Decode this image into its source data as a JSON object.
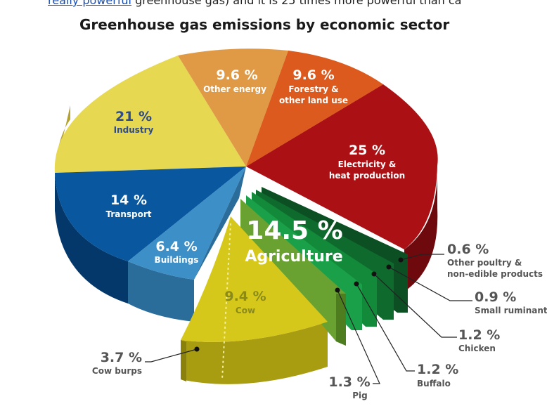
{
  "page": {
    "top_text_link": "really powerful",
    "top_text_rest": " greenhouse gas) and it is 25 times more powerful than ca"
  },
  "chart_data": {
    "type": "pie",
    "title": "Greenhouse gas emissions by economic sector",
    "unit": "%",
    "slices": [
      {
        "key": "energy",
        "label": "Other energy",
        "value": 9.6,
        "value_label": "9.6 %",
        "color": "#e09a45"
      },
      {
        "key": "forestry",
        "label_lines": [
          "Forestry &",
          "other land use"
        ],
        "value": 9.6,
        "value_label": "9.6 %",
        "color": "#dc5a1d"
      },
      {
        "key": "electricity",
        "label_lines": [
          "Electricity &",
          "heat production"
        ],
        "value": 25,
        "value_label": "25 %",
        "color": "#b01116"
      },
      {
        "key": "agriculture",
        "label": "Agriculture",
        "value": 14.5,
        "value_label": "14.5 %",
        "color": "#2e9a3a"
      },
      {
        "key": "buildings",
        "label": "Buildings",
        "value": 6.4,
        "value_label": "6.4 %",
        "color": "#3d8fc8"
      },
      {
        "key": "transport",
        "label": "Transport",
        "value": 14,
        "value_label": "14 %",
        "color": "#08579f"
      },
      {
        "key": "industry",
        "label": "Industry",
        "value": 21,
        "value_label": "21 %",
        "color": "#e7d851"
      }
    ],
    "agriculture_breakdown": [
      {
        "key": "cow",
        "label": "Cow",
        "value": 9.4,
        "value_label": "9.4 %",
        "color": "#d6c81a"
      },
      {
        "key": "cow_burps",
        "label": "Cow burps",
        "value": 3.7,
        "value_label": "3.7 %"
      },
      {
        "key": "pig",
        "label": "Pig",
        "value": 1.3,
        "value_label": "1.3 %",
        "color": "#6aa232"
      },
      {
        "key": "buffalo",
        "label": "Buffalo",
        "value": 1.2,
        "value_label": "1.2 %",
        "color": "#3a8e3a"
      },
      {
        "key": "chicken",
        "label": "Chicken",
        "value": 1.2,
        "value_label": "1.2 %",
        "color": "#1f8f3f"
      },
      {
        "key": "small_ruminant",
        "label": "Small ruminant",
        "value": 0.9,
        "value_label": "0.9 %",
        "color": "#127a35"
      },
      {
        "key": "poultry",
        "label_lines": [
          "Other poultry &",
          "non-edible products"
        ],
        "value": 0.6,
        "value_label": "0.6 %",
        "color": "#0a5a26"
      }
    ]
  }
}
